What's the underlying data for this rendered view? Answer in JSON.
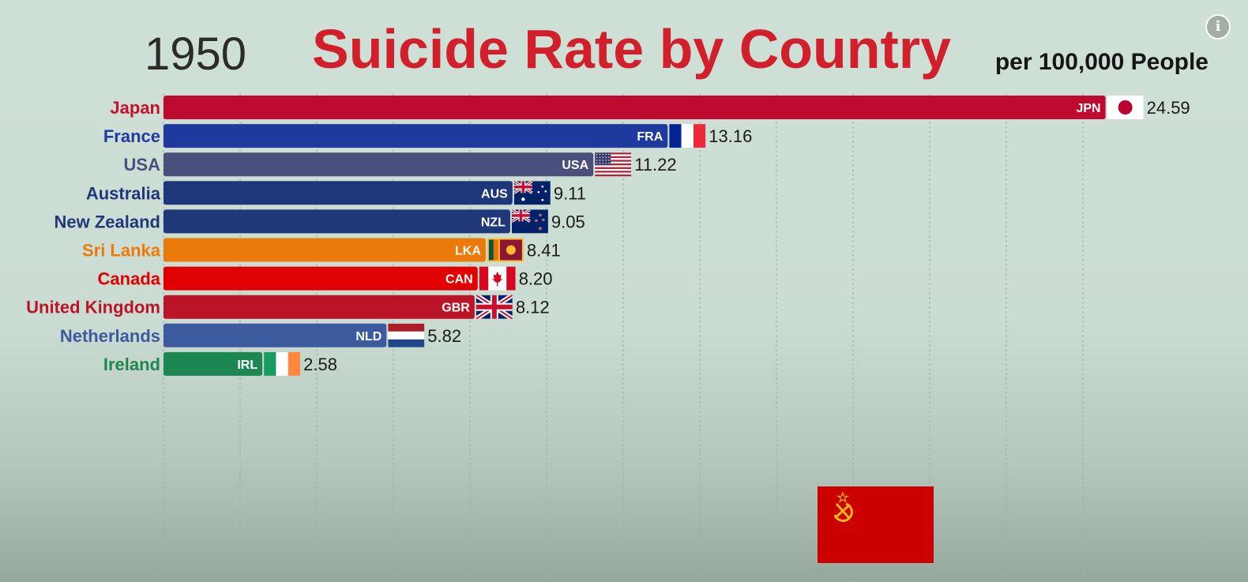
{
  "header": {
    "year": "1950",
    "title": "Suicide Rate by Country",
    "subtitle": "per 100,000 People"
  },
  "info_button_label": "i",
  "chart_data": {
    "type": "bar",
    "orientation": "horizontal",
    "title": "Suicide Rate by Country",
    "subtitle": "per 100,000 People",
    "year": "1950",
    "xlim": [
      0,
      25.5
    ],
    "grid": true,
    "categories": [
      "Japan",
      "France",
      "USA",
      "Australia",
      "New Zealand",
      "Sri Lanka",
      "Canada",
      "United Kingdom",
      "Netherlands",
      "Ireland"
    ],
    "codes": [
      "JPN",
      "FRA",
      "USA",
      "AUS",
      "NZL",
      "LKA",
      "CAN",
      "GBR",
      "NLD",
      "IRL"
    ],
    "values": [
      24.59,
      13.16,
      11.22,
      9.11,
      9.05,
      8.41,
      8.2,
      8.12,
      5.82,
      2.58
    ],
    "value_labels": [
      "24.59",
      "13.16",
      "11.22",
      "9.11",
      "9.05",
      "8.41",
      "8.20",
      "8.12",
      "5.82",
      "2.58"
    ],
    "colors": [
      "#bf0a30",
      "#1f3a9e",
      "#4b4f7c",
      "#1e367a",
      "#20377a",
      "#ec7a0b",
      "#e00000",
      "#bb1428",
      "#3b5b9e",
      "#1c8753"
    ],
    "label_colors": [
      "#c8102e",
      "#1f3a9e",
      "#4b4f7c",
      "#1e367a",
      "#20377a",
      "#ec7a0b",
      "#e00000",
      "#bb1428",
      "#3b5b9e",
      "#1c8753"
    ],
    "flags": [
      "japan-flag",
      "france-flag",
      "usa-flag",
      "australia-flag",
      "new-zealand-flag",
      "sri-lanka-flag",
      "canada-flag",
      "uk-flag",
      "netherlands-flag",
      "ireland-flag"
    ]
  },
  "incoming_flag": "ussr-flag"
}
